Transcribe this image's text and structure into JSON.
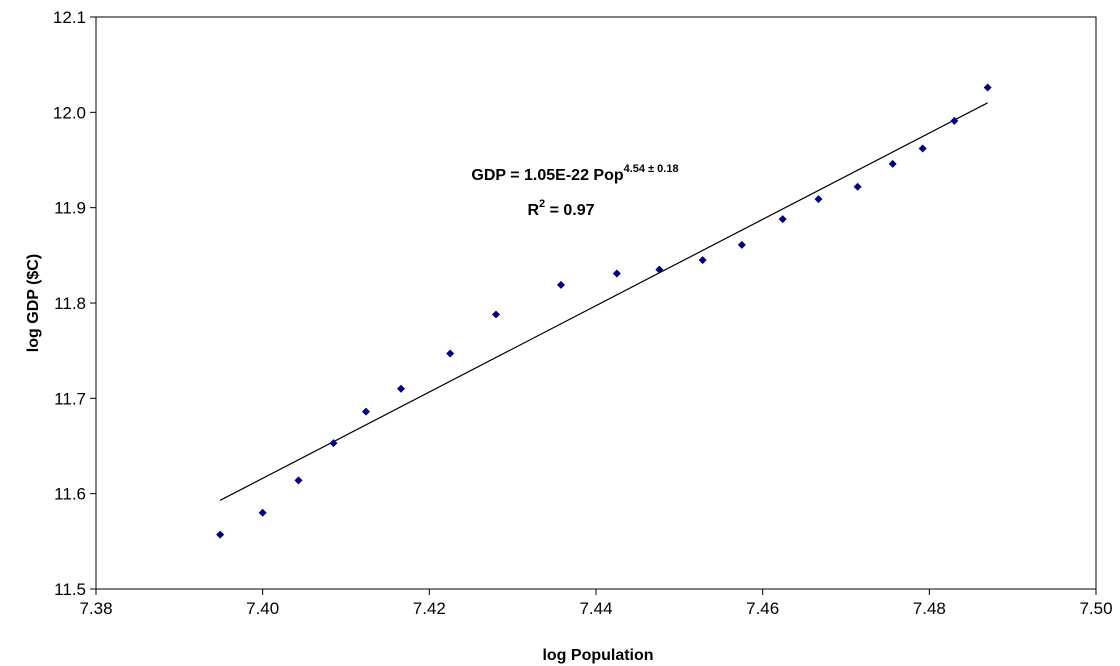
{
  "chart_data": {
    "type": "scatter",
    "xlabel": "log Population",
    "ylabel": "log GDP ($C)",
    "xlim": [
      7.38,
      7.5
    ],
    "ylim": [
      11.5,
      12.1
    ],
    "x_ticks": [
      "7.38",
      "7.40",
      "7.42",
      "7.44",
      "7.46",
      "7.48",
      "7.50"
    ],
    "y_ticks": [
      "11.5",
      "11.6",
      "11.7",
      "11.8",
      "11.9",
      "12.0",
      "12.1"
    ],
    "grid": false,
    "legend": "none",
    "marker_color": "#000080",
    "series": [
      {
        "marker": "diamond",
        "points": [
          {
            "x": 7.3949,
            "y": 11.557
          },
          {
            "x": 7.4,
            "y": 11.58
          },
          {
            "x": 7.4043,
            "y": 11.614
          },
          {
            "x": 7.4085,
            "y": 11.653
          },
          {
            "x": 7.4124,
            "y": 11.686
          },
          {
            "x": 7.4166,
            "y": 11.71
          },
          {
            "x": 7.4225,
            "y": 11.747
          },
          {
            "x": 7.428,
            "y": 11.788
          },
          {
            "x": 7.4358,
            "y": 11.819
          },
          {
            "x": 7.4425,
            "y": 11.831
          },
          {
            "x": 7.4476,
            "y": 11.835
          },
          {
            "x": 7.4528,
            "y": 11.845
          },
          {
            "x": 7.4575,
            "y": 11.861
          },
          {
            "x": 7.4624,
            "y": 11.888
          },
          {
            "x": 7.4667,
            "y": 11.909
          },
          {
            "x": 7.4714,
            "y": 11.922
          },
          {
            "x": 7.4756,
            "y": 11.946
          },
          {
            "x": 7.4792,
            "y": 11.962
          },
          {
            "x": 7.483,
            "y": 11.991
          },
          {
            "x": 7.487,
            "y": 12.026
          }
        ]
      }
    ],
    "trendline": {
      "x": [
        7.3949,
        7.487
      ],
      "y": [
        11.593,
        12.01
      ],
      "color": "#000000"
    },
    "annotation": {
      "line1_main": "GDP = 1.05E-22 Pop",
      "line1_exponent": "4.54 ± 0.18",
      "line2_main": "R",
      "line2_exponent": "2",
      "line2_rest": " = 0.97"
    }
  }
}
